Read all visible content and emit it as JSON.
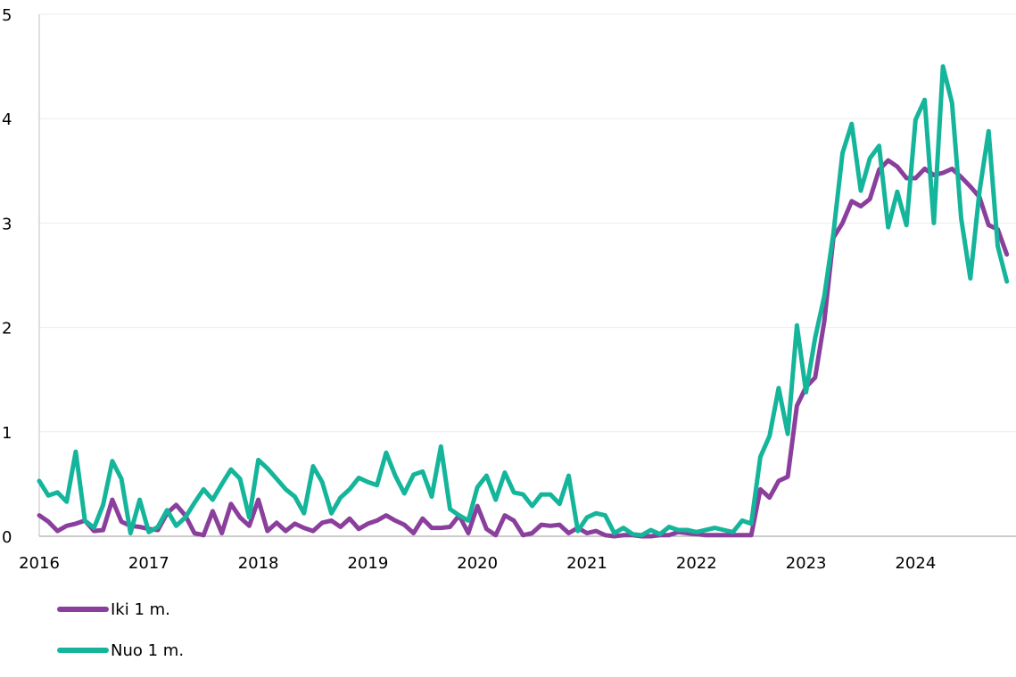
{
  "chart_data": {
    "type": "line",
    "title": "",
    "xlabel": "",
    "ylabel": "",
    "ylim": [
      0,
      5
    ],
    "xlim": [
      2016.0,
      2024.917
    ],
    "grid": true,
    "legend_position": "bottom-left",
    "x_ticks": [
      "2016",
      "2017",
      "2018",
      "2019",
      "2020",
      "2021",
      "2022",
      "2023",
      "2024"
    ],
    "y_ticks": [
      "0",
      "1",
      "2",
      "3",
      "4",
      "5"
    ],
    "x_start": "2016-01",
    "x_step": "1 month",
    "series": [
      {
        "name": "Iki 1 m.",
        "color": "#8b3f9d",
        "values": [
          0.2,
          0.14,
          0.05,
          0.1,
          0.12,
          0.15,
          0.05,
          0.06,
          0.35,
          0.14,
          0.1,
          0.09,
          0.07,
          0.06,
          0.22,
          0.3,
          0.2,
          0.03,
          0.01,
          0.24,
          0.03,
          0.31,
          0.18,
          0.1,
          0.35,
          0.05,
          0.13,
          0.05,
          0.12,
          0.08,
          0.05,
          0.13,
          0.15,
          0.09,
          0.17,
          0.07,
          0.12,
          0.15,
          0.2,
          0.15,
          0.11,
          0.03,
          0.17,
          0.08,
          0.08,
          0.09,
          0.2,
          0.03,
          0.29,
          0.07,
          0.01,
          0.2,
          0.15,
          0.01,
          0.03,
          0.11,
          0.1,
          0.11,
          0.03,
          0.08,
          0.03,
          0.05,
          0.01,
          0.0,
          0.01,
          0.01,
          0.0,
          0.0,
          0.01,
          0.01,
          0.04,
          0.03,
          0.02,
          0.01,
          0.01,
          0.01,
          0.01,
          0.01,
          0.01,
          0.45,
          0.37,
          0.53,
          0.57,
          1.25,
          1.43,
          1.52,
          2.06,
          2.86,
          3.0,
          3.21,
          3.16,
          3.23,
          3.51,
          3.6,
          3.54,
          3.43,
          3.43,
          3.52,
          3.46,
          3.48,
          3.52,
          3.44,
          3.35,
          3.25,
          2.98,
          2.94,
          2.7
        ]
      },
      {
        "name": "Nuo 1 m.",
        "color": "#14b59a",
        "values": [
          0.53,
          0.39,
          0.42,
          0.33,
          0.81,
          0.15,
          0.08,
          0.3,
          0.72,
          0.55,
          0.03,
          0.35,
          0.04,
          0.09,
          0.25,
          0.1,
          0.18,
          0.32,
          0.45,
          0.35,
          0.5,
          0.64,
          0.55,
          0.18,
          0.73,
          0.65,
          0.55,
          0.45,
          0.38,
          0.22,
          0.67,
          0.52,
          0.22,
          0.37,
          0.45,
          0.56,
          0.52,
          0.49,
          0.8,
          0.58,
          0.41,
          0.59,
          0.62,
          0.38,
          0.86,
          0.26,
          0.2,
          0.15,
          0.47,
          0.58,
          0.35,
          0.61,
          0.42,
          0.4,
          0.29,
          0.4,
          0.4,
          0.31,
          0.58,
          0.05,
          0.18,
          0.22,
          0.2,
          0.03,
          0.08,
          0.02,
          0.01,
          0.06,
          0.02,
          0.09,
          0.06,
          0.06,
          0.04,
          0.06,
          0.08,
          0.06,
          0.04,
          0.15,
          0.12,
          0.76,
          0.96,
          1.42,
          0.98,
          2.02,
          1.38,
          1.9,
          2.3,
          2.9,
          3.67,
          3.95,
          3.31,
          3.62,
          3.74,
          2.96,
          3.3,
          2.98,
          3.99,
          4.18,
          3.0,
          4.5,
          4.15,
          3.04,
          2.47,
          3.3,
          3.88,
          2.78,
          2.44
        ]
      }
    ]
  }
}
